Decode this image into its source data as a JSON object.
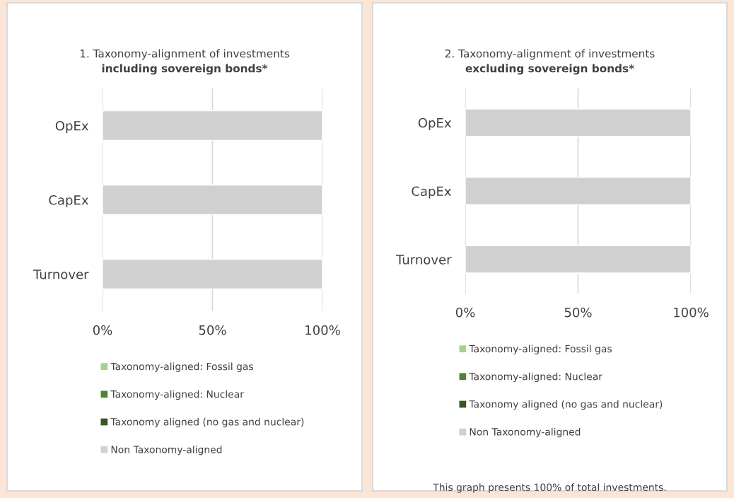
{
  "chart_data": [
    {
      "type": "bar",
      "orientation": "horizontal",
      "stacked": true,
      "title": "1. Taxonomy-alignment of investments",
      "subtitle": "including sovereign bonds*",
      "categories": [
        "OpEx",
        "CapEx",
        "Turnover"
      ],
      "series": [
        {
          "name": "Taxonomy-aligned: Fossil gas",
          "color": "#a9d18e",
          "values": [
            0,
            0,
            0
          ]
        },
        {
          "name": "Taxonomy-aligned: Nuclear",
          "color": "#548235",
          "values": [
            0,
            0,
            0
          ]
        },
        {
          "name": "Taxonomy aligned (no gas and nuclear)",
          "color": "#375623",
          "values": [
            0,
            0,
            0
          ]
        },
        {
          "name": "Non Taxonomy-aligned",
          "color": "#d0d0d0",
          "values": [
            100,
            100,
            100
          ]
        }
      ],
      "xlim": [
        0,
        100
      ],
      "xticks": [
        {
          "value": 0,
          "label": "0%"
        },
        {
          "value": 50,
          "label": "50%"
        },
        {
          "value": 100,
          "label": "100%"
        }
      ],
      "grid": "x",
      "legend": "bottom"
    },
    {
      "type": "bar",
      "orientation": "horizontal",
      "stacked": true,
      "title": "2. Taxonomy-alignment of investments",
      "subtitle": "excluding sovereign bonds*",
      "categories": [
        "OpEx",
        "CapEx",
        "Turnover"
      ],
      "series": [
        {
          "name": "Taxonomy-aligned: Fossil gas",
          "color": "#a9d18e",
          "values": [
            0,
            0,
            0
          ]
        },
        {
          "name": "Taxonomy-aligned: Nuclear",
          "color": "#548235",
          "values": [
            0,
            0,
            0
          ]
        },
        {
          "name": "Taxonomy aligned (no gas and nuclear)",
          "color": "#375623",
          "values": [
            0,
            0,
            0
          ]
        },
        {
          "name": "Non Taxonomy-aligned",
          "color": "#d0d0d0",
          "values": [
            100,
            100,
            100
          ]
        }
      ],
      "xlim": [
        0,
        100
      ],
      "xticks": [
        {
          "value": 0,
          "label": "0%"
        },
        {
          "value": 50,
          "label": "50%"
        },
        {
          "value": 100,
          "label": "100%"
        }
      ],
      "grid": "x",
      "legend": "bottom",
      "annotations": [
        "This graph presents 100% of total investments."
      ]
    }
  ]
}
